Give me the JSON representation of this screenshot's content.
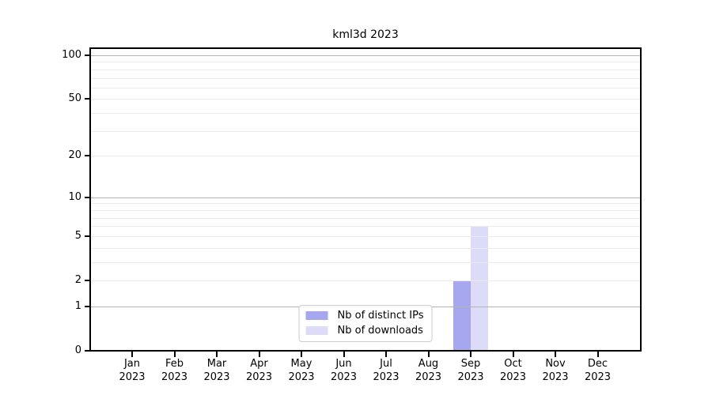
{
  "figure": {
    "background": "#ffffff"
  },
  "chart_data": {
    "type": "bar",
    "title": "kml3d 2023",
    "categories": [
      "Jan 2023",
      "Feb 2023",
      "Mar 2023",
      "Apr 2023",
      "May 2023",
      "Jun 2023",
      "Jul 2023",
      "Aug 2023",
      "Sep 2023",
      "Oct 2023",
      "Nov 2023",
      "Dec 2023"
    ],
    "series": [
      {
        "name": "Nb of distinct IPs",
        "color": "#a7a7f0",
        "values": [
          0,
          0,
          0,
          0,
          0,
          0,
          0,
          0,
          2,
          0,
          0,
          0
        ]
      },
      {
        "name": "Nb of downloads",
        "color": "#dcdcf8",
        "values": [
          0,
          0,
          0,
          0,
          0,
          0,
          0,
          0,
          6,
          0,
          0,
          0
        ]
      }
    ],
    "xlabel": "",
    "ylabel": "",
    "y_scale": "log1p",
    "ylim": [
      0,
      100
    ],
    "y_ticks": [
      0,
      1,
      2,
      5,
      10,
      20,
      50,
      100
    ],
    "y_major_gridlines": [
      1,
      10,
      100
    ],
    "y_minor_gridlines": [
      2,
      3,
      4,
      5,
      6,
      7,
      8,
      9,
      20,
      30,
      40,
      50,
      60,
      70,
      80,
      90
    ],
    "grid": "horizontal",
    "legend_position": "lower center"
  },
  "colors": {
    "major_grid": "#b3b3b3",
    "minor_grid": "#ececec",
    "spine": "#000000",
    "legend_border": "#cccccc",
    "text": "#000000"
  }
}
